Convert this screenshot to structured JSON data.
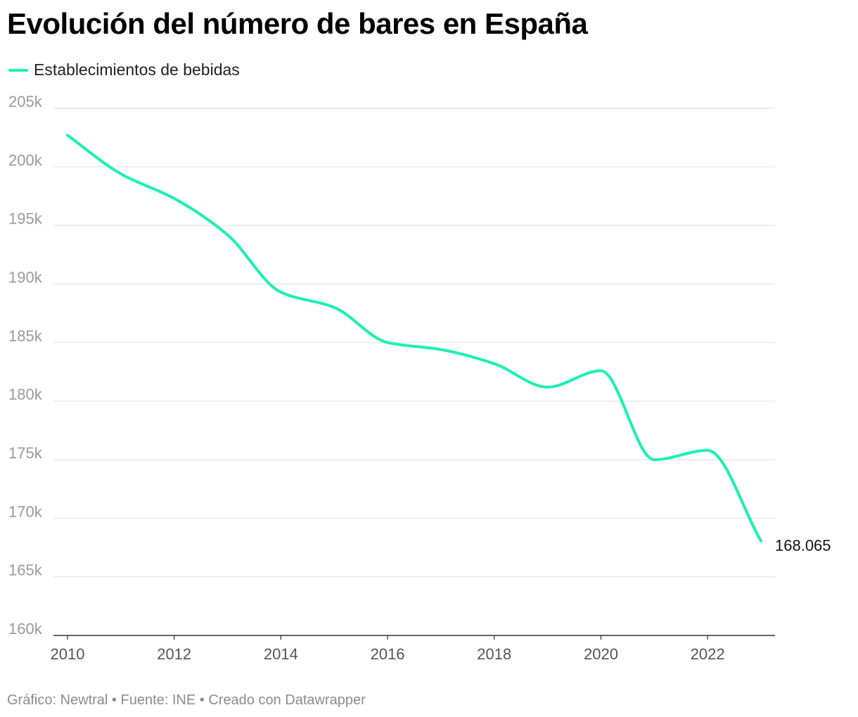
{
  "title": "Evolución del número de bares en España",
  "footer": "Gráfico: Newtral • Fuente: INE • Creado con Datawrapper",
  "colors": {
    "line": "#19f0b4",
    "grid": "#e2e2e2",
    "axis": "#333333"
  },
  "chart_data": {
    "type": "line",
    "title": "Evolución del número de bares en España",
    "xlabel": "",
    "ylabel": "",
    "x": [
      2010,
      2011,
      2012,
      2013,
      2014,
      2015,
      2016,
      2017,
      2018,
      2019,
      2020,
      2021,
      2022,
      2023
    ],
    "series": [
      {
        "name": "Establecimientos de bebidas",
        "values": [
          202700,
          199400,
          197300,
          194200,
          189300,
          188000,
          185000,
          184400,
          183200,
          181200,
          182600,
          175000,
          175800,
          168065
        ]
      }
    ],
    "end_label": "168.065",
    "ylim": [
      160000,
      205000
    ],
    "yticks": [
      160000,
      165000,
      170000,
      175000,
      180000,
      185000,
      190000,
      195000,
      200000,
      205000
    ],
    "ytick_labels": [
      "160k",
      "165k",
      "170k",
      "175k",
      "180k",
      "185k",
      "190k",
      "195k",
      "200k",
      "205k"
    ],
    "xticks": [
      2010,
      2012,
      2014,
      2016,
      2018,
      2020,
      2022
    ],
    "xtick_labels": [
      "2010",
      "2012",
      "2014",
      "2016",
      "2018",
      "2020",
      "2022"
    ],
    "grid": true,
    "legend": "top-left"
  }
}
